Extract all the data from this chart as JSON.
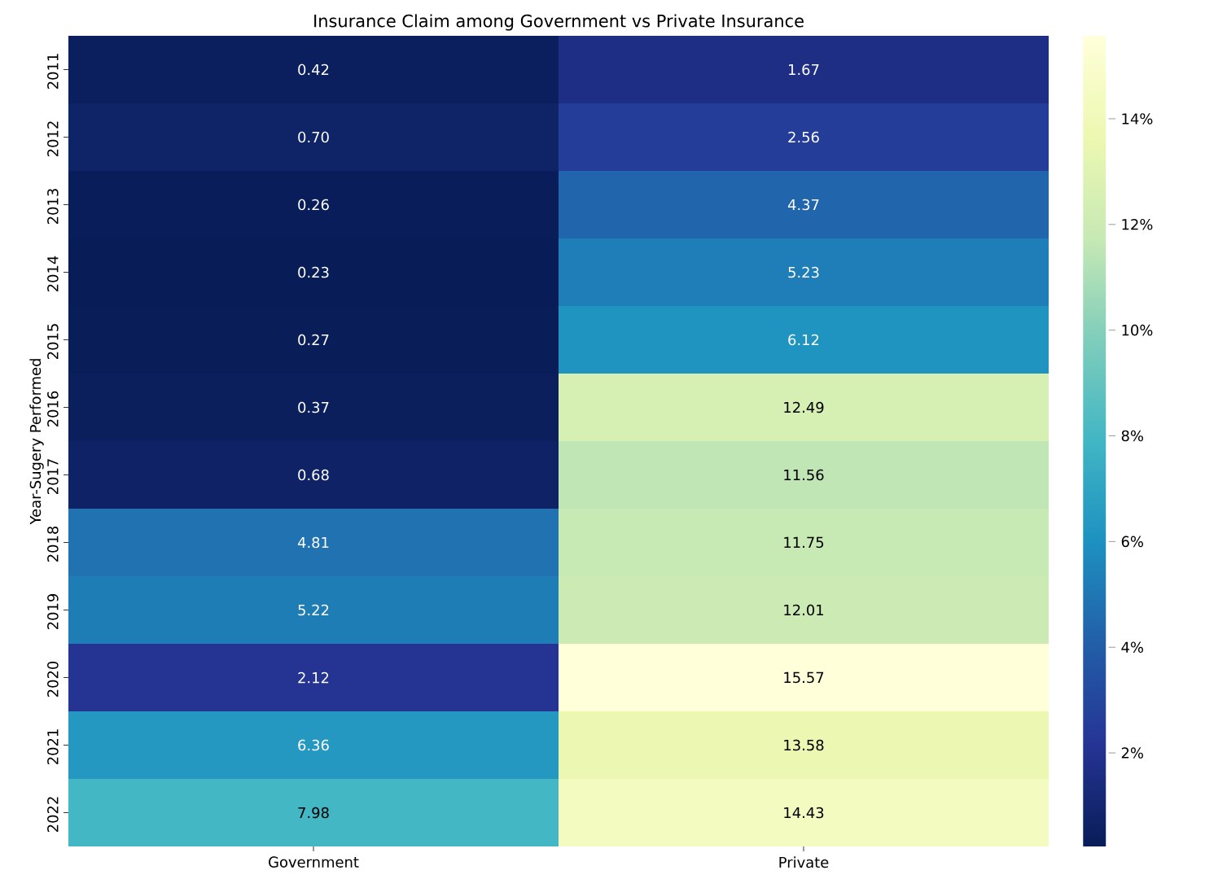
{
  "chart_data": {
    "type": "heatmap",
    "title": "Insurance Claim among Government vs Private Insurance",
    "ylabel": "Year-Sugery Performed",
    "categories": [
      "Government",
      "Private"
    ],
    "y_categories": [
      "2011",
      "2012",
      "2013",
      "2014",
      "2015",
      "2016",
      "2017",
      "2018",
      "2019",
      "2020",
      "2021",
      "2022"
    ],
    "cells": [
      [
        0.42,
        1.67
      ],
      [
        0.7,
        2.56
      ],
      [
        0.26,
        4.37
      ],
      [
        0.23,
        5.23
      ],
      [
        0.27,
        6.12
      ],
      [
        0.37,
        12.49
      ],
      [
        0.68,
        11.56
      ],
      [
        4.81,
        11.75
      ],
      [
        5.22,
        12.01
      ],
      [
        2.12,
        15.57
      ],
      [
        6.36,
        13.58
      ],
      [
        7.98,
        14.43
      ]
    ],
    "cell_labels": [
      [
        "0.42",
        "1.67"
      ],
      [
        "0.70",
        "2.56"
      ],
      [
        "0.26",
        "4.37"
      ],
      [
        "0.23",
        "5.23"
      ],
      [
        "0.27",
        "6.12"
      ],
      [
        "0.37",
        "12.49"
      ],
      [
        "0.68",
        "11.56"
      ],
      [
        "4.81",
        "11.75"
      ],
      [
        "5.22",
        "12.01"
      ],
      [
        "2.12",
        "15.57"
      ],
      [
        "6.36",
        "13.58"
      ],
      [
        "7.98",
        "14.43"
      ]
    ],
    "clim": [
      0.23,
      15.57
    ],
    "cticks": [
      {
        "value": 2,
        "label": "2%"
      },
      {
        "value": 4,
        "label": "4%"
      },
      {
        "value": 6,
        "label": "6%"
      },
      {
        "value": 8,
        "label": "8%"
      },
      {
        "value": 10,
        "label": "10%"
      },
      {
        "value": 12,
        "label": "12%"
      },
      {
        "value": 14,
        "label": "14%"
      }
    ]
  }
}
